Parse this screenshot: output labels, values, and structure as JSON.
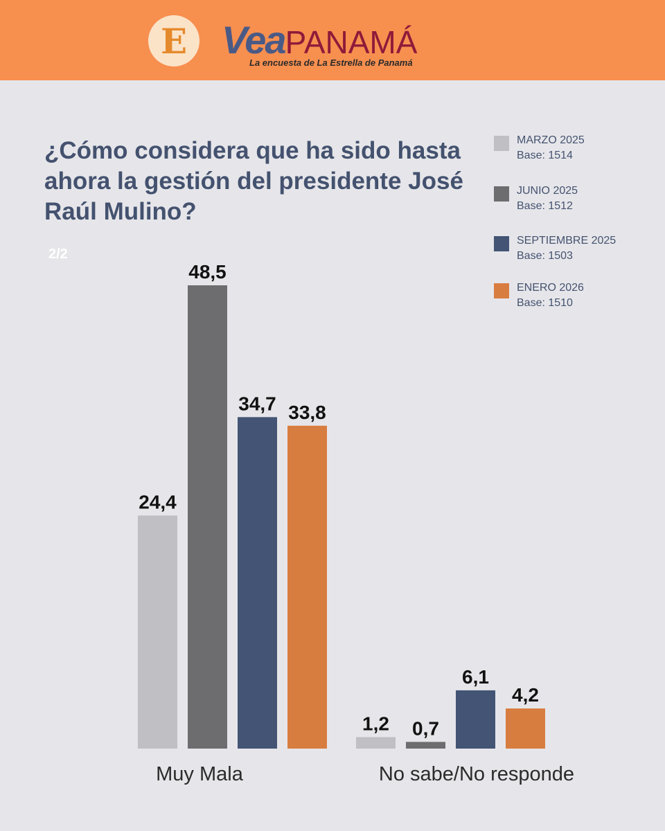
{
  "header": {
    "logo_letter": "E",
    "brand_part1": "Vea",
    "brand_part2": "PANAMÁ",
    "tagline": "La encuesta de La Estrella de Panamá"
  },
  "page_indicator": "2/2",
  "legend": [
    {
      "name": "MARZO 2025",
      "base": "Base: 1514",
      "color": "#c0c0c4"
    },
    {
      "name": "JUNIO 2025",
      "base": "Base: 1512",
      "color": "#6d6d6f"
    },
    {
      "name": "SEPTIEMBRE 2025",
      "base": "Base: 1503",
      "color": "#435475"
    },
    {
      "name": "ENERO 2026",
      "base": "Base: 1510",
      "color": "#d87d40"
    }
  ],
  "chart_data": {
    "type": "bar",
    "title": "¿Cómo considera que ha sido hasta ahora la  gestión del presidente José Raúl Mulino?",
    "categories": [
      "Muy Mala",
      "No sabe/No responde"
    ],
    "series": [
      {
        "name": "MARZO 2025",
        "values": [
          24.4,
          1.2
        ],
        "labels": [
          "24,4",
          "1,2"
        ]
      },
      {
        "name": "JUNIO 2025",
        "values": [
          48.5,
          0.7
        ],
        "labels": [
          "48,5",
          "0,7"
        ]
      },
      {
        "name": "SEPTIEMBRE 2025",
        "values": [
          34.7,
          6.1
        ],
        "labels": [
          "34,7",
          "6,1"
        ]
      },
      {
        "name": "ENERO 2026",
        "values": [
          33.8,
          4.2
        ],
        "labels": [
          "33,8",
          "4,2"
        ]
      }
    ],
    "xlabel": "",
    "ylabel": "",
    "ylim": [
      0,
      48.5
    ],
    "grid": false,
    "legend_position": "top-right"
  }
}
